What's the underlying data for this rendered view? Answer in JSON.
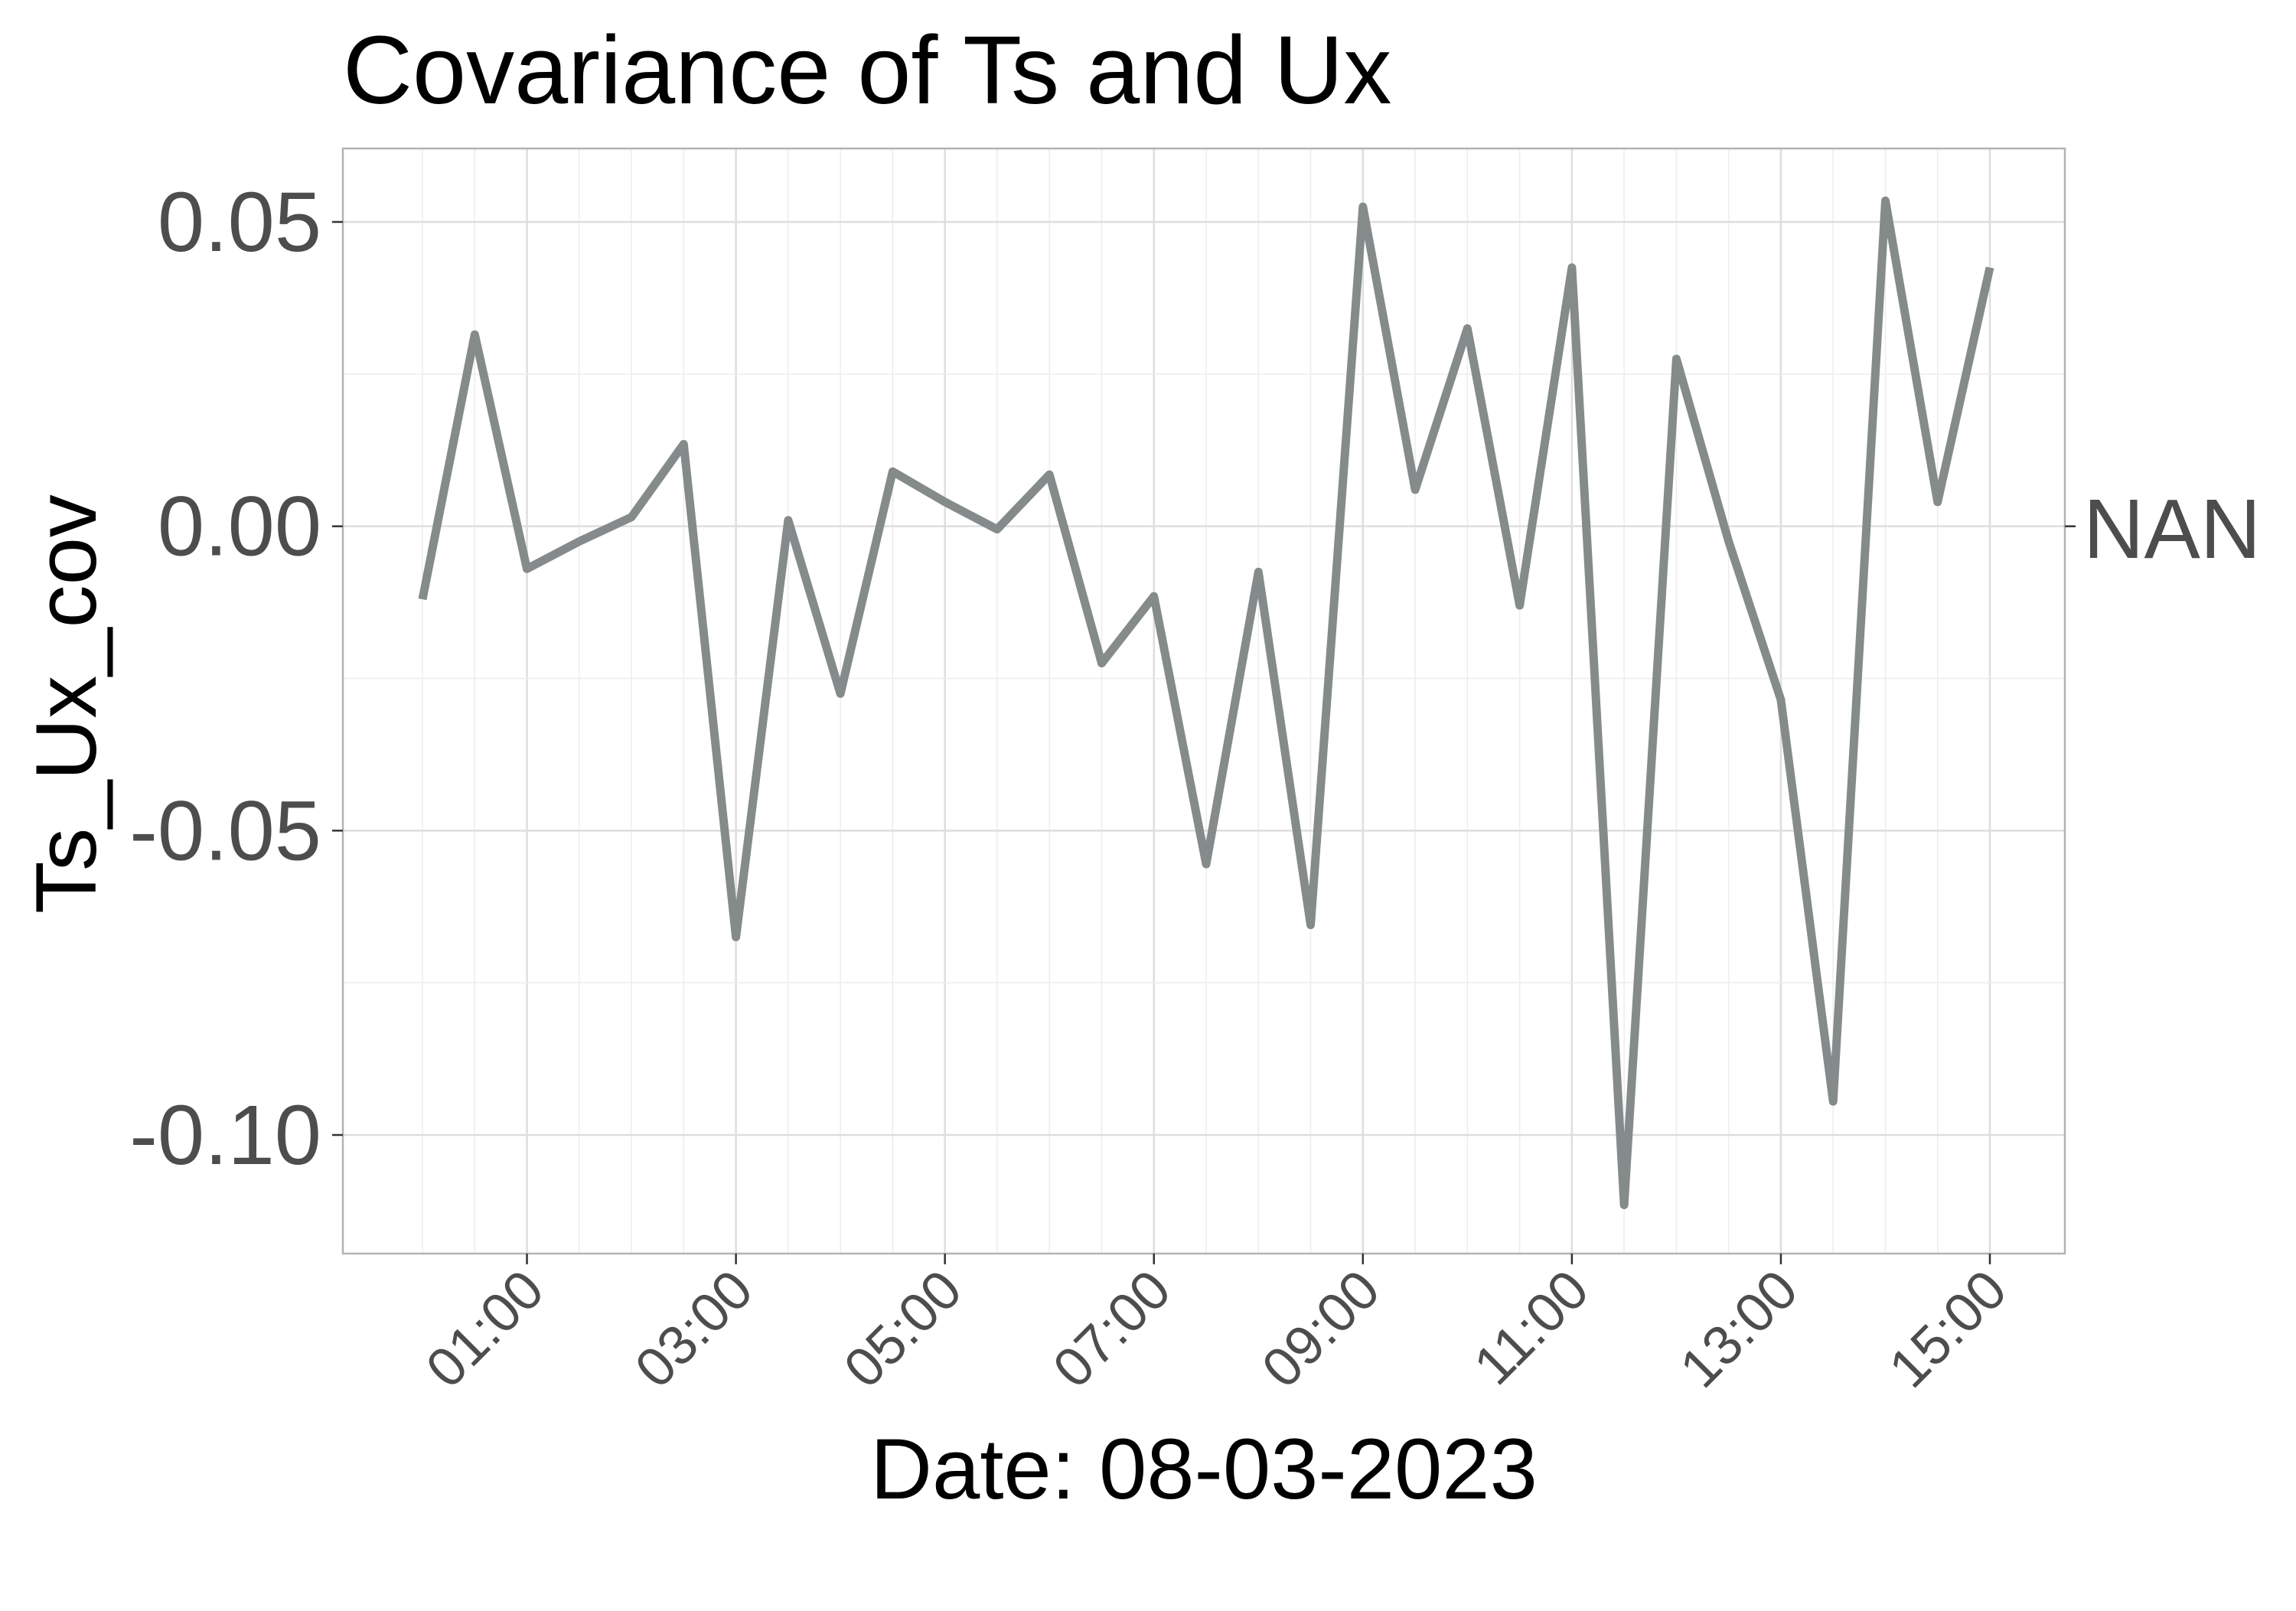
{
  "chart_data": {
    "type": "line",
    "title": "Covariance of Ts and Ux",
    "xlabel": "Date: 08-03-2023",
    "ylabel": "Ts_Ux_cov",
    "right_label": "NAN",
    "x_ticks": [
      "01:00",
      "03:00",
      "05:00",
      "07:00",
      "09:00",
      "11:00",
      "13:00",
      "15:00"
    ],
    "y_ticks": [
      "0.05",
      "0.00",
      "-0.05",
      "-0.10"
    ],
    "xlim": [
      "00:00",
      "15:00"
    ],
    "ylim": [
      -0.12,
      0.062
    ],
    "grid": true,
    "legend": "none",
    "line_color": "#848b8a",
    "series": [
      {
        "x": [
          "00:00",
          "00:30",
          "01:00",
          "01:30",
          "02:00",
          "02:30",
          "03:00",
          "03:30",
          "04:00",
          "04:30",
          "05:00",
          "05:30",
          "06:00",
          "06:30",
          "07:00",
          "07:30",
          "08:00",
          "08:30",
          "09:00",
          "09:30",
          "10:00",
          "10:30",
          "11:00",
          "11:30",
          "12:00",
          "12:30",
          "13:00",
          "13:30",
          "14:00",
          "14:30",
          "15:00"
        ],
        "values": [
          -0.012,
          0.0315,
          -0.007,
          -0.0025,
          0.0015,
          0.0135,
          -0.0675,
          0.001,
          -0.0275,
          0.009,
          0.004,
          -0.0005,
          0.0085,
          -0.0225,
          -0.0115,
          -0.0555,
          -0.0075,
          -0.0655,
          0.0525,
          0.006,
          0.0325,
          -0.013,
          0.0425,
          -0.1115,
          0.0275,
          -0.0025,
          -0.0285,
          -0.0945,
          0.0535,
          0.004,
          0.0425
        ]
      }
    ]
  }
}
